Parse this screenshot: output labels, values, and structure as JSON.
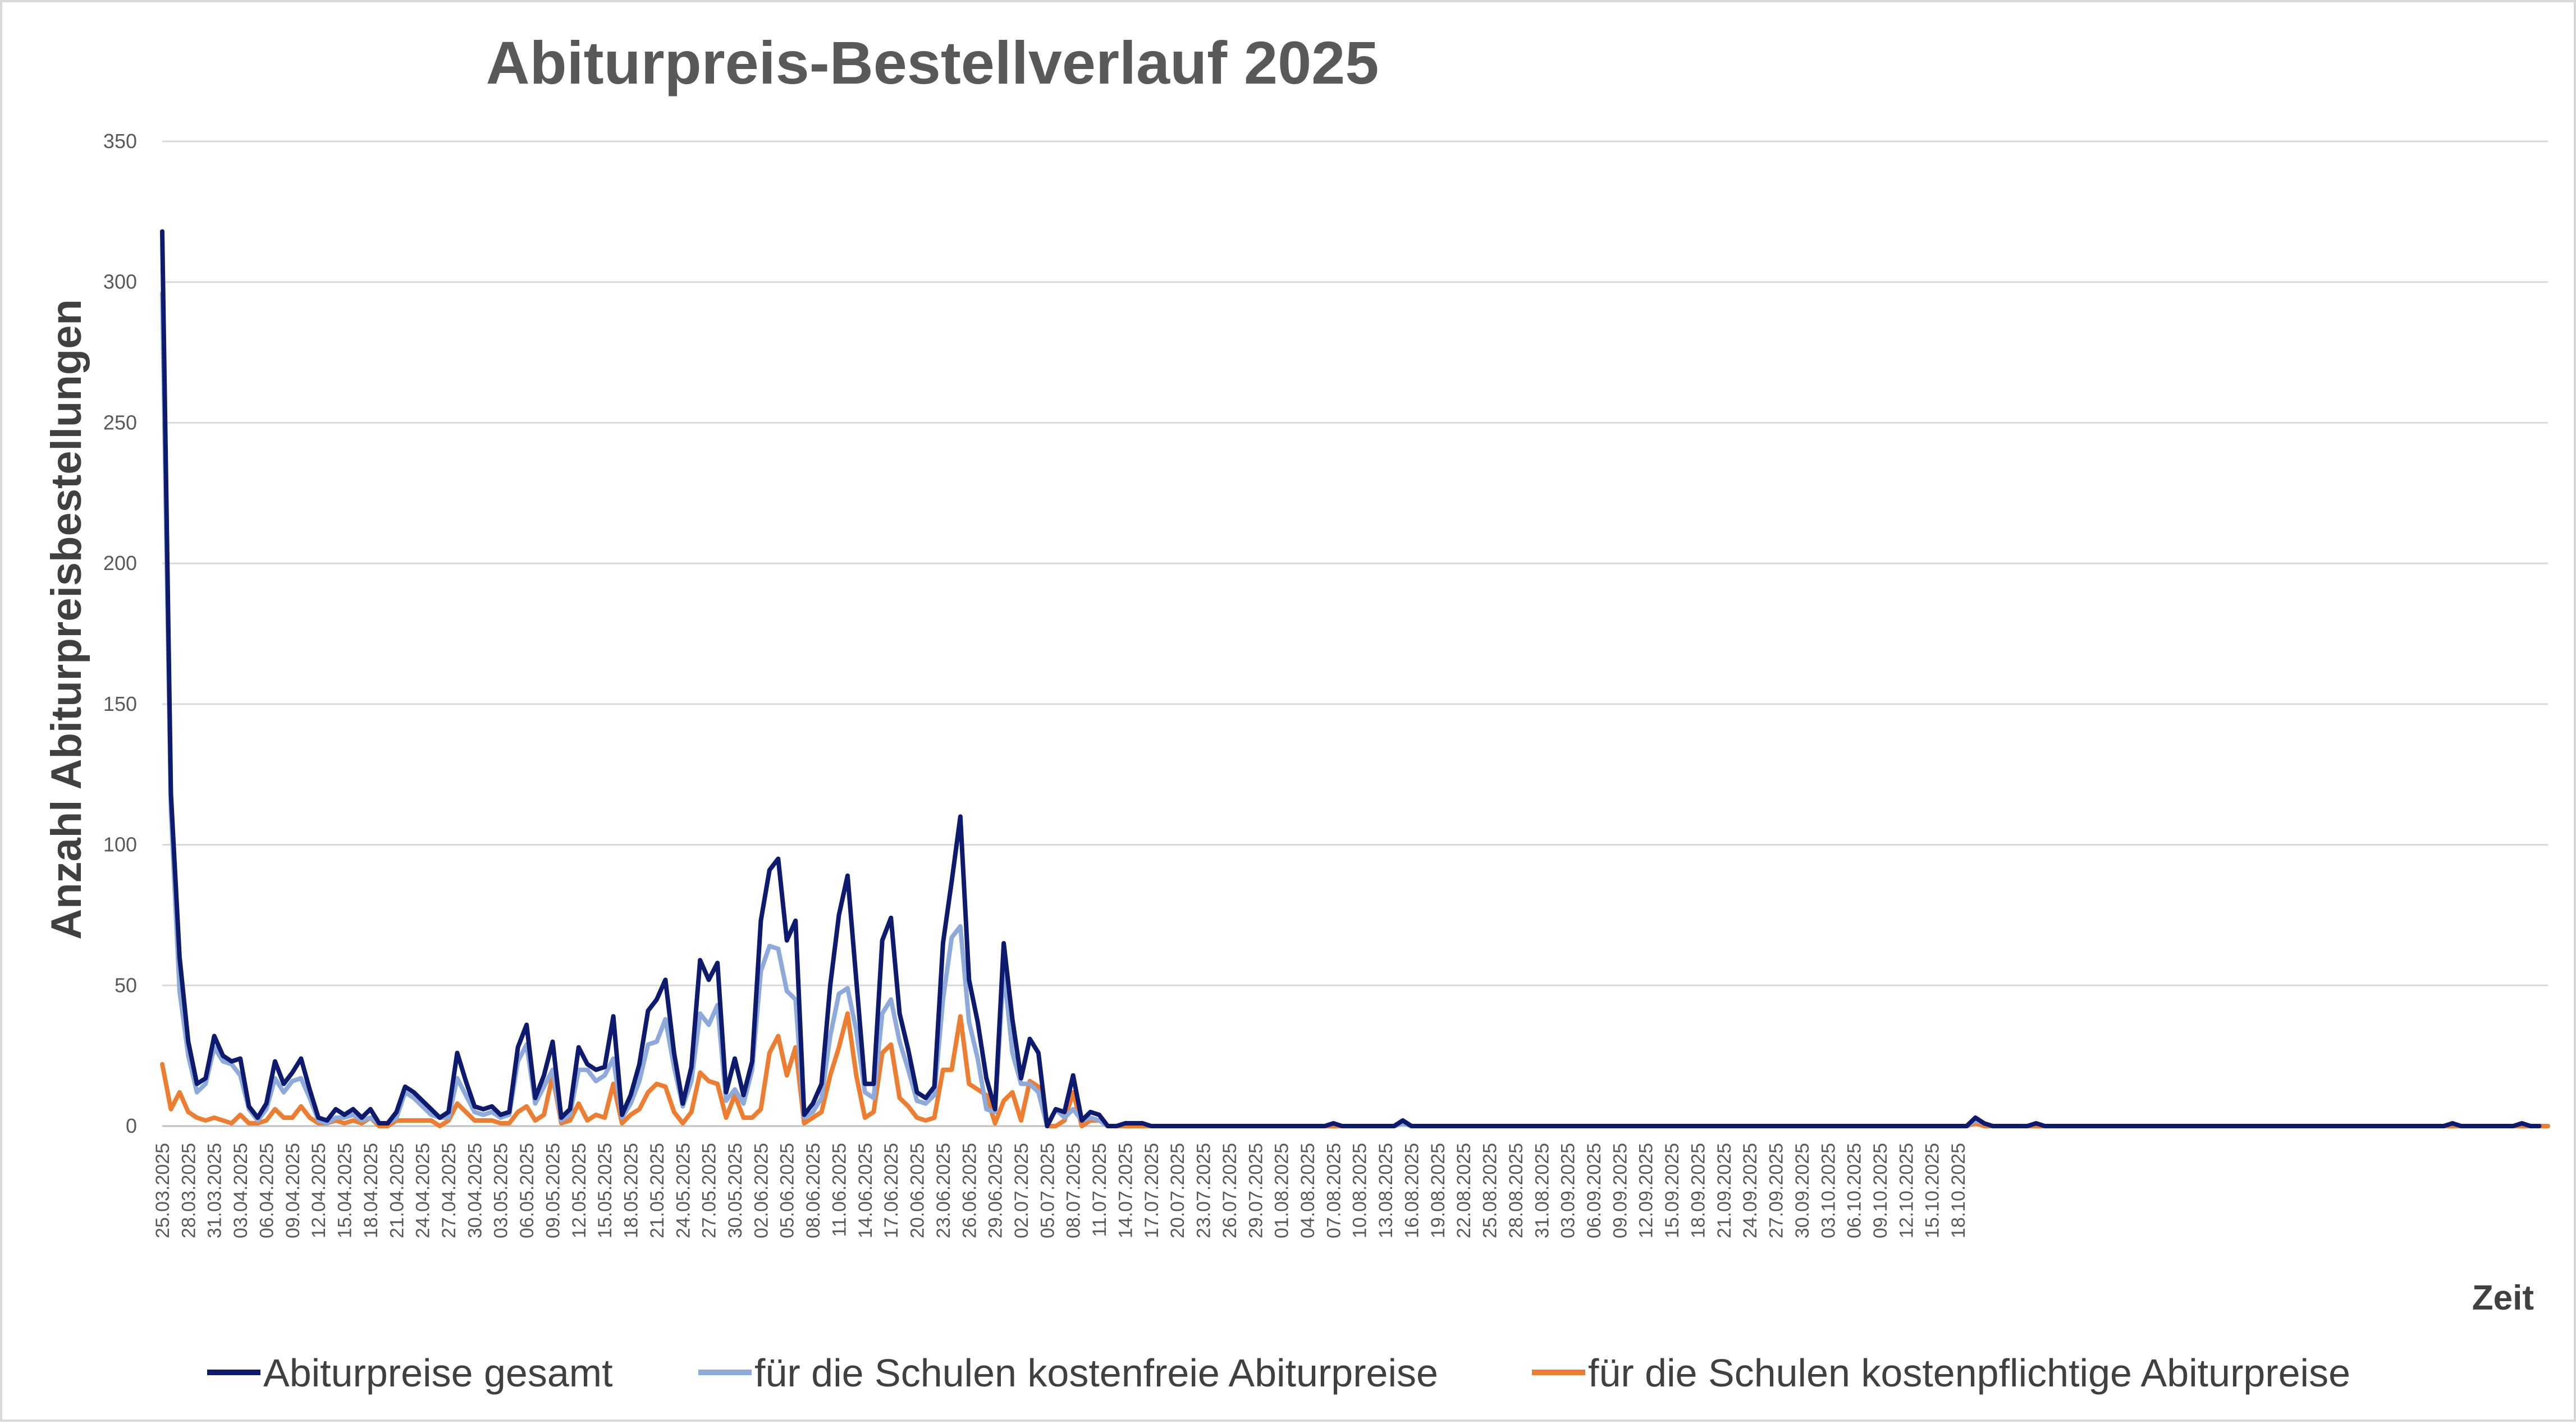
{
  "chart_data": {
    "type": "line",
    "title": "Abiturpreis-Bestellverlauf 2025",
    "xlabel": "Zeit",
    "ylabel": "Anzahl Abiturpreisbestellungen",
    "ylim": [
      0,
      350
    ],
    "yticks": [
      0,
      50,
      100,
      150,
      200,
      250,
      300,
      350
    ],
    "grid": true,
    "legend_position": "bottom",
    "start_date": "25.03.2025",
    "x_tick_labels": [
      "25.03.2025",
      "28.03.2025",
      "31.03.2025",
      "03.04.2025",
      "06.04.2025",
      "09.04.2025",
      "12.04.2025",
      "15.04.2025",
      "18.04.2025",
      "21.04.2025",
      "24.04.2025",
      "27.04.2025",
      "30.04.2025",
      "03.05.2025",
      "06.05.2025",
      "09.05.2025",
      "12.05.2025",
      "15.05.2025",
      "18.05.2025",
      "21.05.2025",
      "24.05.2025",
      "27.05.2025",
      "30.05.2025",
      "02.06.2025",
      "05.06.2025",
      "08.06.2025",
      "11.06.2025",
      "14.06.2025",
      "17.06.2025",
      "20.06.2025",
      "23.06.2025",
      "26.06.2025",
      "29.06.2025",
      "02.07.2025",
      "05.07.2025",
      "08.07.2025",
      "11.07.2025",
      "14.07.2025",
      "17.07.2025",
      "20.07.2025",
      "23.07.2025",
      "26.07.2025",
      "29.07.2025",
      "01.08.2025",
      "04.08.2025",
      "07.08.2025",
      "10.08.2025",
      "13.08.2025",
      "16.08.2025",
      "19.08.2025",
      "22.08.2025",
      "25.08.2025",
      "28.08.2025",
      "31.08.2025",
      "03.09.2025",
      "06.09.2025",
      "09.09.2025",
      "12.09.2025",
      "15.09.2025",
      "18.09.2025",
      "21.09.2025",
      "24.09.2025",
      "27.09.2025",
      "30.09.2025",
      "03.10.2025",
      "06.10.2025",
      "09.10.2025",
      "12.10.2025",
      "15.10.2025",
      "18.10.2025"
    ],
    "series": [
      {
        "name": "Abiturpreise gesamt",
        "color": "#0d1a6e",
        "values": [
          318,
          118,
          60,
          30,
          15,
          17,
          32,
          25,
          23,
          24,
          7,
          3,
          8,
          23,
          15,
          19,
          24,
          13,
          3,
          2,
          6,
          4,
          6,
          3,
          6,
          1,
          1,
          5,
          14,
          12,
          9,
          6,
          3,
          5,
          26,
          16,
          7,
          6,
          7,
          4,
          5,
          28,
          36,
          10,
          18,
          30,
          3,
          6,
          28,
          22,
          20,
          21,
          39,
          4,
          11,
          22,
          41,
          45,
          52,
          26,
          8,
          21,
          59,
          52,
          58,
          12,
          24,
          11,
          23,
          73,
          91,
          95,
          66,
          73,
          4,
          8,
          15,
          50,
          75,
          89,
          52,
          15,
          15,
          66,
          74,
          40,
          27,
          12,
          10,
          14,
          65,
          87,
          110,
          52,
          37,
          17,
          6,
          65,
          38,
          17,
          31,
          26,
          0,
          6,
          5,
          18,
          2,
          5,
          4,
          0,
          0,
          1,
          1,
          1,
          0,
          0,
          0,
          0,
          0,
          0,
          0,
          0,
          0,
          0,
          0,
          0,
          0,
          0,
          0,
          0,
          0,
          0,
          0,
          0,
          0,
          1,
          0,
          0,
          0,
          0,
          0,
          0,
          0,
          2,
          0,
          0,
          0,
          0,
          0,
          0,
          0,
          0,
          0,
          0,
          0,
          0,
          0,
          0,
          0,
          0,
          0,
          0,
          0,
          0,
          0,
          0,
          0,
          0,
          0,
          0,
          0,
          0,
          0,
          0,
          0,
          0,
          0,
          0,
          0,
          0,
          0,
          0,
          0,
          0,
          0,
          0,
          0,
          0,
          0,
          0,
          0,
          0,
          0,
          0,
          0,
          0,
          0,
          0,
          0,
          0,
          0,
          0,
          0,
          0,
          0,
          0,
          0,
          0,
          0,
          3,
          1,
          0,
          0,
          0,
          0,
          0,
          1,
          0,
          0,
          0,
          0,
          0,
          0,
          0,
          0,
          0,
          0,
          0,
          0,
          0,
          0,
          0,
          0,
          0,
          0,
          0,
          0,
          0,
          0,
          0,
          0,
          0,
          0,
          0,
          0,
          0,
          0,
          0,
          0,
          0,
          0,
          0,
          0,
          0,
          0,
          0,
          0,
          0,
          0,
          0,
          0,
          0,
          0,
          0,
          1,
          0,
          0,
          0,
          0,
          0,
          0,
          0,
          1,
          0,
          0
        ]
      },
      {
        "name": "für die Schulen kostenfreie Abiturpreise",
        "color": "#8eaadb",
        "values": [
          296,
          112,
          48,
          25,
          12,
          15,
          28,
          23,
          22,
          18,
          6,
          2,
          6,
          17,
          12,
          16,
          17,
          10,
          2,
          1,
          3,
          3,
          4,
          2,
          3,
          1,
          1,
          3,
          12,
          10,
          7,
          4,
          3,
          3,
          17,
          11,
          5,
          4,
          5,
          3,
          4,
          23,
          29,
          8,
          14,
          20,
          2,
          4,
          20,
          20,
          16,
          18,
          24,
          3,
          8,
          16,
          29,
          30,
          38,
          21,
          7,
          16,
          40,
          36,
          43,
          9,
          13,
          8,
          20,
          55,
          64,
          63,
          48,
          45,
          3,
          5,
          10,
          32,
          47,
          49,
          34,
          12,
          10,
          40,
          45,
          30,
          20,
          9,
          8,
          11,
          45,
          67,
          71,
          37,
          24,
          6,
          5,
          56,
          26,
          15,
          15,
          12,
          0,
          6,
          3,
          6,
          2,
          3,
          2,
          0,
          0,
          1,
          1,
          1,
          0,
          0,
          0,
          0,
          0,
          0,
          0,
          0,
          0,
          0,
          0,
          0,
          0,
          0,
          0,
          0,
          0,
          0,
          0,
          0,
          0,
          1,
          0,
          0,
          0,
          0,
          0,
          0,
          0,
          1,
          0,
          0,
          0,
          0,
          0,
          0,
          0,
          0,
          0,
          0,
          0,
          0,
          0,
          0,
          0,
          0,
          0,
          0,
          0,
          0,
          0,
          0,
          0,
          0,
          0,
          0,
          0,
          0,
          0,
          0,
          0,
          0,
          0,
          0,
          0,
          0,
          0,
          0,
          0,
          0,
          0,
          0,
          0,
          0,
          0,
          0,
          0,
          0,
          0,
          0,
          0,
          0,
          0,
          0,
          0,
          0,
          0,
          0,
          0,
          0,
          0,
          0,
          0,
          0,
          0,
          2,
          1,
          0,
          0,
          0,
          0,
          0,
          1,
          0,
          0,
          0,
          0,
          0,
          0,
          0,
          0,
          0,
          0,
          0,
          0,
          0,
          0,
          0,
          0,
          0,
          0,
          0,
          0,
          0,
          0,
          0,
          0,
          0,
          0,
          0,
          0,
          0,
          0,
          0,
          0,
          0,
          0,
          0,
          0,
          0,
          0,
          0,
          0,
          0,
          0,
          0,
          0,
          0,
          0,
          0,
          1,
          0,
          0,
          0,
          0,
          0,
          0,
          0,
          1,
          0,
          0
        ]
      },
      {
        "name": "für die Schulen kostenpflichtige Abiturpreise",
        "color": "#ed7d31",
        "values": [
          22,
          6,
          12,
          5,
          3,
          2,
          3,
          2,
          1,
          4,
          1,
          1,
          2,
          6,
          3,
          3,
          7,
          3,
          1,
          1,
          2,
          1,
          2,
          1,
          3,
          0,
          0,
          2,
          2,
          2,
          2,
          2,
          0,
          2,
          8,
          5,
          2,
          2,
          2,
          1,
          1,
          5,
          7,
          2,
          4,
          18,
          1,
          2,
          8,
          2,
          4,
          3,
          15,
          1,
          4,
          6,
          12,
          15,
          14,
          5,
          1,
          5,
          19,
          16,
          15,
          3,
          11,
          3,
          3,
          6,
          26,
          32,
          18,
          28,
          1,
          3,
          5,
          18,
          28,
          40,
          18,
          3,
          5,
          26,
          29,
          10,
          7,
          3,
          2,
          3,
          20,
          20,
          39,
          15,
          13,
          11,
          1,
          9,
          12,
          2,
          16,
          14,
          0,
          0,
          2,
          12,
          0,
          2,
          2,
          0,
          0,
          0,
          0,
          0,
          0,
          0,
          0,
          0,
          0,
          0,
          0,
          0,
          0,
          0,
          0,
          0,
          0,
          0,
          0,
          0,
          0,
          0,
          0,
          0,
          0,
          0,
          0,
          0,
          0,
          0,
          0,
          0,
          0,
          1,
          0,
          0,
          0,
          0,
          0,
          0,
          0,
          0,
          0,
          0,
          0,
          0,
          0,
          0,
          0,
          0,
          0,
          0,
          0,
          0,
          0,
          0,
          0,
          0,
          0,
          0,
          0,
          0,
          0,
          0,
          0,
          0,
          0,
          0,
          0,
          0,
          0,
          0,
          0,
          0,
          0,
          0,
          0,
          0,
          0,
          0,
          0,
          0,
          0,
          0,
          0,
          0,
          0,
          0,
          0,
          0,
          0,
          0,
          0,
          0,
          0,
          0,
          0,
          0,
          0,
          1,
          0,
          0,
          0,
          0,
          0,
          0,
          0,
          0,
          0,
          0,
          0,
          0,
          0,
          0,
          0,
          0,
          0,
          0,
          0,
          0,
          0,
          0,
          0,
          0,
          0,
          0,
          0,
          0,
          0,
          0,
          0,
          0,
          0,
          0,
          0,
          0,
          0,
          0,
          0,
          0,
          0,
          0,
          0,
          0,
          0,
          0,
          0,
          0,
          0,
          0,
          0,
          0,
          0,
          0,
          0,
          0,
          0,
          0,
          0,
          0,
          0,
          0,
          0,
          0,
          0,
          0
        ]
      }
    ]
  }
}
